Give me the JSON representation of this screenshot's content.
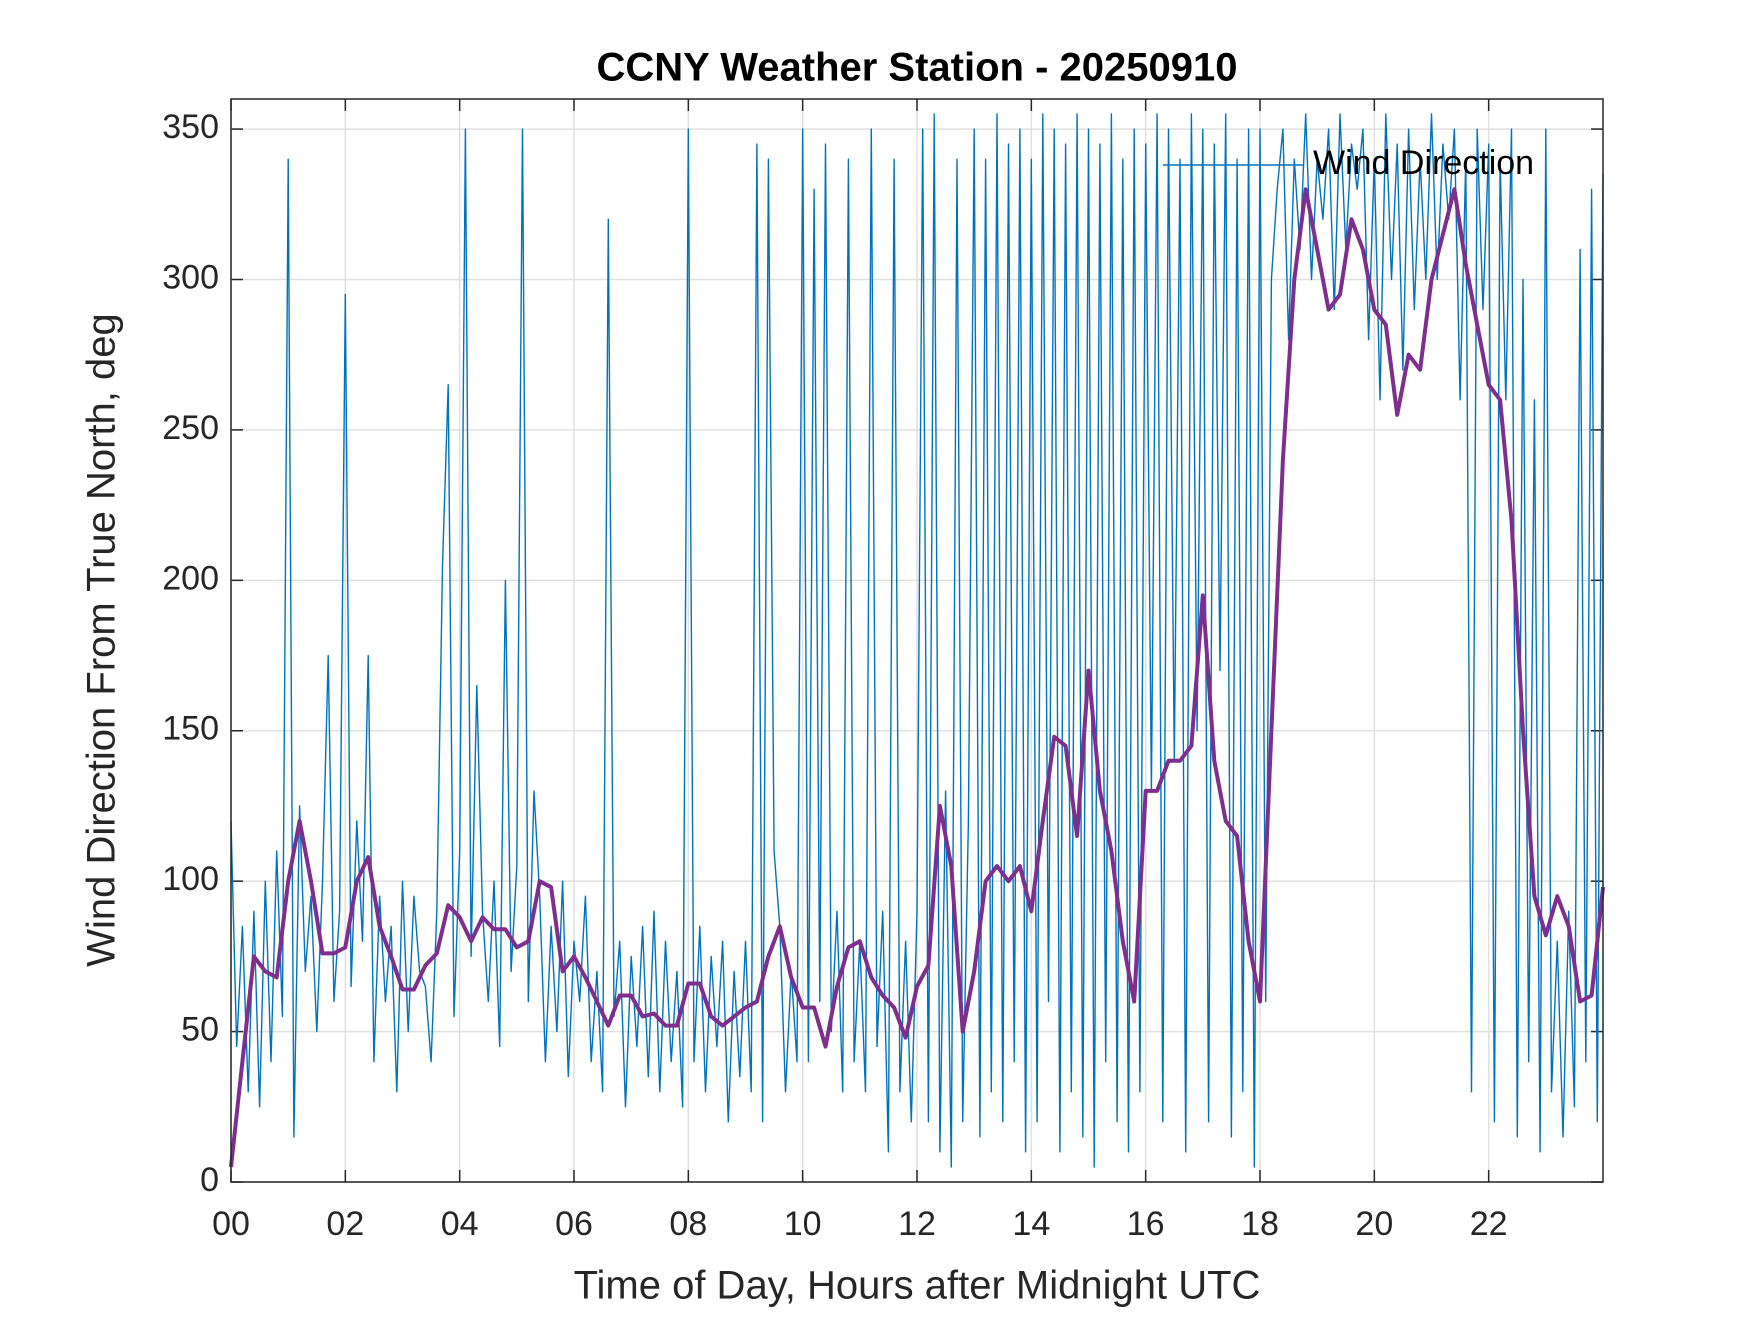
{
  "chart_data": {
    "type": "line",
    "title": "CCNY Weather Station - 20250910",
    "xlabel": "Time of Day, Hours after Midnight UTC",
    "ylabel": "Wind Direction From True North, deg",
    "xlim": [
      0,
      24
    ],
    "ylim": [
      0,
      360
    ],
    "xticks": [
      {
        "value": 0,
        "label": "00"
      },
      {
        "value": 2,
        "label": "02"
      },
      {
        "value": 4,
        "label": "04"
      },
      {
        "value": 6,
        "label": "06"
      },
      {
        "value": 8,
        "label": "08"
      },
      10,
      12,
      14,
      16,
      18,
      20,
      22
    ],
    "yticks": [
      0,
      50,
      100,
      150,
      200,
      250,
      300,
      350
    ],
    "grid": true,
    "legend": "upper right",
    "series": [
      {
        "name": "Wind Direction",
        "color": "#0072bd",
        "x": [
          0,
          0.1,
          0.2,
          0.3,
          0.4,
          0.5,
          0.6,
          0.7,
          0.8,
          0.9,
          1,
          1.1,
          1.2,
          1.3,
          1.4,
          1.5,
          1.6,
          1.7,
          1.8,
          1.9,
          2,
          2.1,
          2.2,
          2.3,
          2.4,
          2.5,
          2.6,
          2.7,
          2.8,
          2.9,
          3,
          3.1,
          3.2,
          3.3,
          3.4,
          3.5,
          3.6,
          3.7,
          3.8,
          3.9,
          4,
          4.1,
          4.2,
          4.3,
          4.4,
          4.5,
          4.6,
          4.7,
          4.8,
          4.9,
          5,
          5.1,
          5.2,
          5.3,
          5.4,
          5.5,
          5.6,
          5.7,
          5.8,
          5.9,
          6,
          6.1,
          6.2,
          6.3,
          6.4,
          6.5,
          6.6,
          6.7,
          6.8,
          6.9,
          7,
          7.1,
          7.2,
          7.3,
          7.4,
          7.5,
          7.6,
          7.7,
          7.8,
          7.9,
          8,
          8.1,
          8.2,
          8.3,
          8.4,
          8.5,
          8.6,
          8.7,
          8.8,
          8.9,
          9,
          9.1,
          9.2,
          9.3,
          9.4,
          9.5,
          9.6,
          9.7,
          9.8,
          9.9,
          10,
          10.1,
          10.2,
          10.3,
          10.4,
          10.5,
          10.6,
          10.7,
          10.8,
          10.9,
          11,
          11.1,
          11.2,
          11.3,
          11.4,
          11.5,
          11.6,
          11.7,
          11.8,
          11.9,
          12,
          12.1,
          12.2,
          12.3,
          12.4,
          12.5,
          12.6,
          12.7,
          12.8,
          12.9,
          13,
          13.1,
          13.2,
          13.3,
          13.4,
          13.5,
          13.6,
          13.7,
          13.8,
          13.9,
          14,
          14.1,
          14.2,
          14.3,
          14.4,
          14.5,
          14.6,
          14.7,
          14.8,
          14.9,
          15,
          15.1,
          15.2,
          15.3,
          15.4,
          15.5,
          15.6,
          15.7,
          15.8,
          15.9,
          16,
          16.1,
          16.2,
          16.3,
          16.4,
          16.5,
          16.6,
          16.7,
          16.8,
          16.9,
          17,
          17.1,
          17.2,
          17.3,
          17.4,
          17.5,
          17.6,
          17.7,
          17.8,
          17.9,
          18,
          18.1,
          18.2,
          18.3,
          18.4,
          18.5,
          18.6,
          18.7,
          18.8,
          18.9,
          19,
          19.1,
          19.2,
          19.3,
          19.4,
          19.5,
          19.6,
          19.7,
          19.8,
          19.9,
          20,
          20.1,
          20.2,
          20.3,
          20.4,
          20.5,
          20.6,
          20.7,
          20.8,
          20.9,
          21,
          21.1,
          21.2,
          21.3,
          21.4,
          21.5,
          21.6,
          21.7,
          21.8,
          21.9,
          22,
          22.1,
          22.2,
          22.3,
          22.4,
          22.5,
          22.6,
          22.7,
          22.8,
          22.9,
          23,
          23.1,
          23.2,
          23.3,
          23.4,
          23.5,
          23.6,
          23.7,
          23.8,
          23.9,
          24
        ],
        "values": [
          120,
          45,
          85,
          30,
          90,
          25,
          100,
          40,
          110,
          55,
          340,
          15,
          125,
          70,
          95,
          50,
          100,
          175,
          60,
          90,
          295,
          65,
          120,
          80,
          175,
          40,
          95,
          60,
          85,
          30,
          100,
          50,
          95,
          70,
          65,
          40,
          90,
          205,
          265,
          55,
          110,
          350,
          75,
          165,
          90,
          60,
          100,
          45,
          200,
          70,
          105,
          350,
          60,
          130,
          95,
          40,
          85,
          50,
          100,
          35,
          80,
          60,
          95,
          40,
          70,
          30,
          320,
          55,
          80,
          25,
          75,
          45,
          85,
          35,
          90,
          30,
          80,
          40,
          70,
          25,
          350,
          40,
          85,
          30,
          75,
          45,
          80,
          20,
          70,
          35,
          80,
          30,
          345,
          20,
          340,
          110,
          85,
          30,
          70,
          40,
          350,
          40,
          330,
          60,
          345,
          50,
          90,
          30,
          340,
          40,
          80,
          30,
          350,
          45,
          90,
          10,
          340,
          30,
          80,
          20,
          90,
          350,
          20,
          355,
          10,
          130,
          5,
          340,
          20,
          120,
          350,
          15,
          340,
          30,
          355,
          20,
          345,
          40,
          350,
          10,
          340,
          20,
          355,
          60,
          350,
          10,
          345,
          30,
          355,
          15,
          350,
          5,
          345,
          40,
          355,
          20,
          340,
          10,
          350,
          30,
          345,
          130,
          355,
          20,
          350,
          140,
          340,
          10,
          355,
          150,
          350,
          20,
          345,
          170,
          355,
          15,
          340,
          30,
          350,
          5,
          350,
          60,
          300,
          330,
          350,
          280,
          340,
          310,
          355,
          300,
          340,
          320,
          350,
          290,
          355,
          310,
          345,
          330,
          350,
          280,
          340,
          260,
          355,
          300,
          345,
          270,
          350,
          290,
          340,
          300,
          355,
          300,
          345,
          320,
          350,
          260,
          340,
          30,
          350,
          290,
          345,
          20,
          340,
          260,
          350,
          15,
          300,
          40,
          260,
          10,
          350,
          30,
          80,
          15,
          90,
          25,
          310,
          40,
          330,
          20,
          335
        ]
      },
      {
        "color": "#7e2f8e",
        "x": [
          0,
          0.2,
          0.4,
          0.6,
          0.8,
          1,
          1.2,
          1.4,
          1.6,
          1.8,
          2,
          2.2,
          2.4,
          2.6,
          2.8,
          3,
          3.2,
          3.4,
          3.6,
          3.8,
          4,
          4.2,
          4.4,
          4.6,
          4.8,
          5,
          5.2,
          5.4,
          5.6,
          5.8,
          6,
          6.2,
          6.4,
          6.6,
          6.8,
          7,
          7.2,
          7.4,
          7.6,
          7.8,
          8,
          8.2,
          8.4,
          8.6,
          8.8,
          9,
          9.2,
          9.4,
          9.6,
          9.8,
          10,
          10.2,
          10.4,
          10.6,
          10.8,
          11,
          11.2,
          11.4,
          11.6,
          11.8,
          12,
          12.2,
          12.4,
          12.6,
          12.8,
          13,
          13.2,
          13.4,
          13.6,
          13.8,
          14,
          14.2,
          14.4,
          14.6,
          14.8,
          15,
          15.2,
          15.4,
          15.6,
          15.8,
          16,
          16.2,
          16.4,
          16.6,
          16.8,
          17,
          17.2,
          17.4,
          17.6,
          17.8,
          18,
          18.2,
          18.4,
          18.6,
          18.8,
          19,
          19.2,
          19.4,
          19.6,
          19.8,
          20,
          20.2,
          20.4,
          20.6,
          20.8,
          21,
          21.2,
          21.4,
          21.6,
          21.8,
          22,
          22.2,
          22.4,
          22.6,
          22.8,
          23,
          23.2,
          23.4,
          23.6,
          23.8,
          24
        ],
        "values": [
          5,
          40,
          75,
          70,
          68,
          100,
          120,
          100,
          76,
          76,
          78,
          100,
          108,
          85,
          75,
          64,
          64,
          72,
          76,
          92,
          88,
          80,
          88,
          84,
          84,
          78,
          80,
          100,
          98,
          70,
          75,
          68,
          60,
          52,
          62,
          62,
          55,
          56,
          52,
          52,
          66,
          66,
          55,
          52,
          55,
          58,
          60,
          75,
          85,
          68,
          58,
          58,
          45,
          65,
          78,
          80,
          68,
          62,
          58,
          48,
          65,
          72,
          125,
          105,
          50,
          70,
          100,
          105,
          100,
          105,
          90,
          120,
          148,
          145,
          115,
          170,
          130,
          110,
          80,
          60,
          130,
          130,
          140,
          140,
          145,
          195,
          140,
          120,
          115,
          80,
          60,
          150,
          240,
          300,
          330,
          310,
          290,
          295,
          320,
          310,
          290,
          285,
          255,
          275,
          270,
          300,
          315,
          330,
          305,
          285,
          265,
          260,
          220,
          150,
          95,
          82,
          95,
          85,
          60,
          62,
          98
        ]
      }
    ]
  }
}
